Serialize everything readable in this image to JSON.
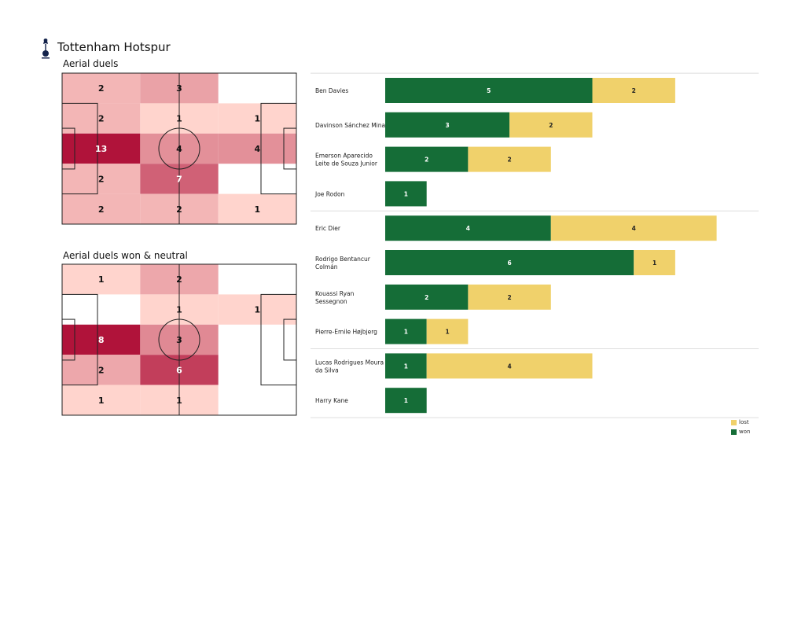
{
  "header": {
    "team": "Tottenham Hotspur",
    "crest_icon": "cockerel-crest-icon"
  },
  "colors": {
    "won": "#156d37",
    "lost": "#f0d16b",
    "heat_low": "#ffd4cd",
    "heat_high": "#b0133a",
    "pitch_line": "#222222"
  },
  "chart_data": [
    {
      "type": "heatmap",
      "title": "Aerial duels",
      "grid": {
        "cols": 3,
        "rows": 5
      },
      "cells": [
        [
          2,
          3,
          null
        ],
        [
          2,
          1,
          1
        ],
        [
          13,
          4,
          4
        ],
        [
          2,
          7,
          null
        ],
        [
          2,
          2,
          1
        ]
      ]
    },
    {
      "type": "heatmap",
      "title": "Aerial duels won & neutral",
      "grid": {
        "cols": 3,
        "rows": 5
      },
      "cells": [
        [
          1,
          2,
          null
        ],
        [
          null,
          1,
          1
        ],
        [
          8,
          3,
          null
        ],
        [
          2,
          6,
          null
        ],
        [
          1,
          1,
          null
        ]
      ]
    },
    {
      "type": "bar",
      "orientation": "horizontal",
      "stacked": true,
      "categories": [
        "Ben Davies",
        "Davinson Sánchez Mina",
        "Emerson Aparecido Leite de Souza Junior",
        "Joe Rodon",
        "Eric  Dier",
        "Rodrigo Bentancur Colmán",
        "Kouassi Ryan Sessegnon",
        "Pierre-Emile Højbjerg",
        "Lucas Rodrigues Moura da Silva",
        "Harry Kane"
      ],
      "label_lines": [
        [
          "Ben Davies"
        ],
        [
          "Davinson Sánchez Mina"
        ],
        [
          "Emerson Aparecido",
          "Leite de Souza Junior"
        ],
        [
          "Joe Rodon"
        ],
        [
          "Eric  Dier"
        ],
        [
          "Rodrigo Bentancur",
          "Colmán"
        ],
        [
          "Kouassi Ryan",
          "Sessegnon"
        ],
        [
          "Pierre-Emile Højbjerg"
        ],
        [
          "Lucas Rodrigues Moura",
          "da Silva"
        ],
        [
          "Harry Kane"
        ]
      ],
      "groups": [
        [
          0,
          1,
          2,
          3
        ],
        [
          4,
          5,
          6,
          7
        ],
        [
          8,
          9
        ]
      ],
      "series": [
        {
          "name": "won",
          "values": [
            5,
            3,
            2,
            1,
            4,
            6,
            2,
            1,
            1,
            1
          ]
        },
        {
          "name": "lost",
          "values": [
            2,
            2,
            2,
            0,
            4,
            1,
            2,
            1,
            4,
            0
          ]
        }
      ],
      "xlim": [
        0,
        8
      ],
      "legend": {
        "position": "bottom-right",
        "entries": [
          "lost",
          "won"
        ]
      }
    }
  ]
}
